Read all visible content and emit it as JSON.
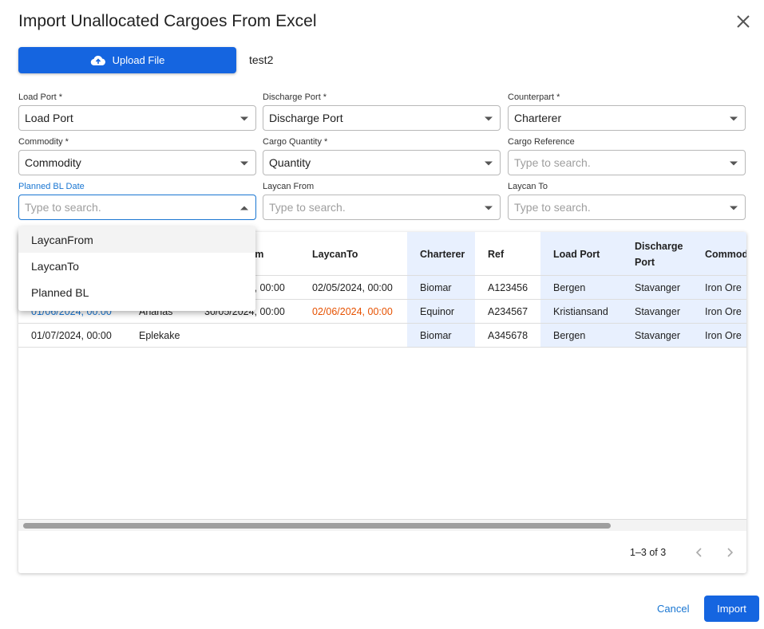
{
  "header": {
    "title": "Import Unallocated Cargoes From Excel",
    "upload_button": "Upload File",
    "file_name": "test2"
  },
  "fields": [
    {
      "label": "Load Port *",
      "value": "Load Port",
      "placeholder": false,
      "focused": false
    },
    {
      "label": "Discharge Port *",
      "value": "Discharge Port",
      "placeholder": false,
      "focused": false
    },
    {
      "label": "Counterpart *",
      "value": "Charterer",
      "placeholder": false,
      "focused": false
    },
    {
      "label": "Commodity *",
      "value": "Commodity",
      "placeholder": false,
      "focused": false
    },
    {
      "label": "Cargo Quantity *",
      "value": "Quantity",
      "placeholder": false,
      "focused": false
    },
    {
      "label": "Cargo Reference",
      "value": "Type to search.",
      "placeholder": true,
      "focused": false
    },
    {
      "label": "Planned BL Date",
      "value": "Type to search.",
      "placeholder": true,
      "focused": true
    },
    {
      "label": "Laycan From",
      "value": "Type to search.",
      "placeholder": true,
      "focused": false
    },
    {
      "label": "Laycan To",
      "value": "Type to search.",
      "placeholder": true,
      "focused": false
    }
  ],
  "dropdown": {
    "options": [
      "LaycanFrom",
      "LaycanTo",
      "Planned BL"
    ]
  },
  "table": {
    "columns": [
      {
        "label": null,
        "highlighted": false
      },
      {
        "label": null,
        "highlighted": false
      },
      {
        "label": "LaycanFrom",
        "highlighted": false
      },
      {
        "label": "LaycanTo",
        "highlighted": false
      },
      {
        "label": "Charterer",
        "highlighted": true
      },
      {
        "label": "Ref",
        "highlighted": false
      },
      {
        "label": "Load Port",
        "highlighted": true
      },
      {
        "label": "Discharge Port",
        "highlighted": true
      },
      {
        "label": "Commodity",
        "highlighted": true
      }
    ],
    "rows": [
      [
        null,
        null,
        "01/05/2024, 00:00",
        "02/05/2024, 00:00",
        "Biomar",
        "A123456",
        "Bergen",
        "Stavanger",
        "Iron Ore"
      ],
      [
        {
          "text": "01/06/2024, 00:00",
          "color": "#1976d2"
        },
        "Ananas",
        "30/05/2024, 00:00",
        {
          "text": "02/06/2024, 00:00",
          "color": "#e65100"
        },
        "Equinor",
        "A234567",
        "Kristiansand",
        "Stavanger",
        "Iron Ore"
      ],
      [
        "01/07/2024, 00:00",
        "Eplekake",
        null,
        null,
        "Biomar",
        "A345678",
        "Bergen",
        "Stavanger",
        "Iron Ore"
      ]
    ],
    "pagination": "1–3 of 3"
  },
  "footer": {
    "cancel": "Cancel",
    "import": "Import"
  }
}
